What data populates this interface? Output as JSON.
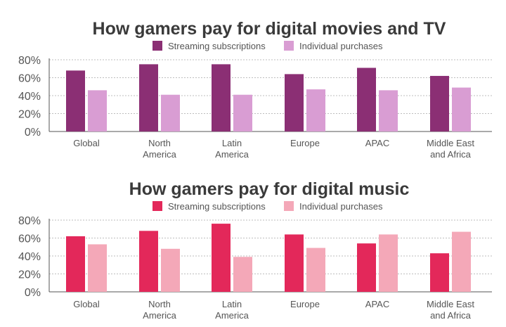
{
  "chart_data": [
    {
      "type": "bar",
      "title": "How gamers pay for digital movies and TV",
      "categories": [
        "Global",
        "North\nAmerica",
        "Latin\nAmerica",
        "Europe",
        "APAC",
        "Middle East\nand Africa"
      ],
      "series": [
        {
          "name": "Streaming subscriptions",
          "color": "#8b2f74",
          "values": [
            68,
            75,
            75,
            64,
            71,
            62
          ]
        },
        {
          "name": "Individual purchases",
          "color": "#d99dd3",
          "values": [
            46,
            41,
            41,
            47,
            46,
            49
          ]
        }
      ],
      "yticks": [
        "0%",
        "20%",
        "40%",
        "60%",
        "80%"
      ],
      "ylim": [
        0,
        80
      ],
      "grid": true,
      "legend": "top-center"
    },
    {
      "type": "bar",
      "title": "How gamers pay for digital music",
      "categories": [
        "Global",
        "North\nAmerica",
        "Latin\nAmerica",
        "Europe",
        "APAC",
        "Middle East\nand Africa"
      ],
      "series": [
        {
          "name": "Streaming subscriptions",
          "color": "#e3285a",
          "values": [
            62,
            68,
            76,
            64,
            54,
            43
          ]
        },
        {
          "name": "Individual purchases",
          "color": "#f4a8b8",
          "values": [
            53,
            48,
            39,
            49,
            64,
            67
          ]
        }
      ],
      "yticks": [
        "0%",
        "20%",
        "40%",
        "60%",
        "80%"
      ],
      "ylim": [
        0,
        80
      ],
      "grid": true,
      "legend": "top-center"
    }
  ]
}
